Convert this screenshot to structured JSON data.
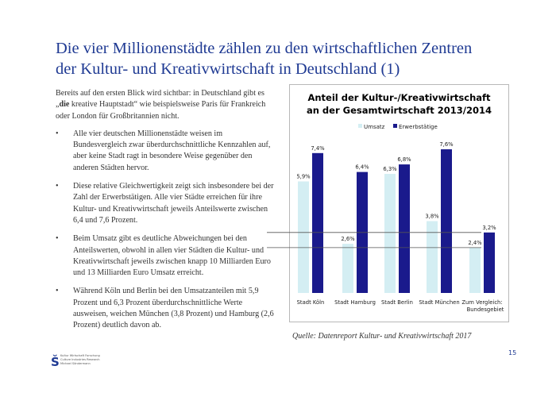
{
  "title": {
    "line1": "Die vier Millionenstädte zählen zu den wirtschaftlichen Zentren",
    "line2": "der Kultur- und Kreativwirtschaft in Deutschland (1)"
  },
  "body": {
    "intro_before": "Bereits auf den ersten Blick wird sichtbar: in Deutschland gibt es „",
    "intro_bold": "die",
    "intro_after": " kreative Hauptstadt“ wie beispielsweise Paris für Frankreich oder London für Großbritannien nicht.",
    "bullet_symbol": "•",
    "bullets": [
      "Alle vier deutschen Millionenstädte weisen im Bundesvergleich zwar überdurchschnittliche Kennzahlen auf, aber keine Stadt ragt in besondere Weise gegenüber den anderen Städten hervor.",
      "Diese relative Gleichwertigkeit zeigt sich insbesondere bei der Zahl der Erwerbstätigen. Alle vier Städte erreichen für ihre Kultur- und Kreativwirtschaft jeweils Anteilswerte zwischen 6,4 und 7,6 Prozent.",
      "Beim Umsatz gibt es deutliche Abweichungen bei den Anteilswerten, obwohl in allen vier Städten die Kultur- und Kreativwirtschaft jeweils zwischen knapp 10 Milliarden Euro und 13 Milliarden Euro Umsatz erreicht.",
      "Während Köln und Berlin bei den Umsatzanteilen mit 5,9 Prozent und 6,3 Prozent überdurchschnittliche Werte ausweisen, weichen München (3,8 Prozent) und Hamburg (2,6 Prozent) deutlich davon ab."
    ]
  },
  "chart_data": {
    "type": "bar",
    "title_line1": "Anteil der Kultur-/Kreativwirtschaft",
    "title_line2": "an der Gesamtwirtschaft 2013/2014",
    "categories": [
      "Stadt Köln",
      "Stadt Hamburg",
      "Stadt Berlin",
      "Stadt München",
      "Zum Vergleich:"
    ],
    "category_sublabels": [
      "",
      "",
      "",
      "",
      "Bundesgebiet"
    ],
    "series": [
      {
        "name": "Umsatz",
        "values": [
          5.9,
          2.6,
          6.3,
          3.8,
          2.4
        ],
        "labels": [
          "5,9%",
          "2,6%",
          "6,3%",
          "3,8%",
          "2,4%"
        ]
      },
      {
        "name": "Erwerbstätige",
        "values": [
          7.4,
          6.4,
          6.8,
          7.6,
          3.2
        ],
        "labels": [
          "7,4%",
          "6,4%",
          "6,8%",
          "7,6%",
          "3,2%"
        ]
      }
    ],
    "ylim": [
      0,
      8.4
    ],
    "reference_lines": [
      3.2,
      2.4
    ],
    "legend": "top-center"
  },
  "colors": {
    "umsatz": "#d4eef3",
    "erwerbstaetige": "#1a1a8c",
    "ref_line": "#555555",
    "title_blue": "#1f3a93"
  },
  "source": "Quelle: Datenreport Kultur- und Kreativwirtschaft 2017",
  "page_number": "15",
  "logo": {
    "mark": "Š",
    "lines": [
      "Kultur Wirtschaft Forschung",
      "Culture Industries Research",
      "Michael Söndermann"
    ]
  }
}
